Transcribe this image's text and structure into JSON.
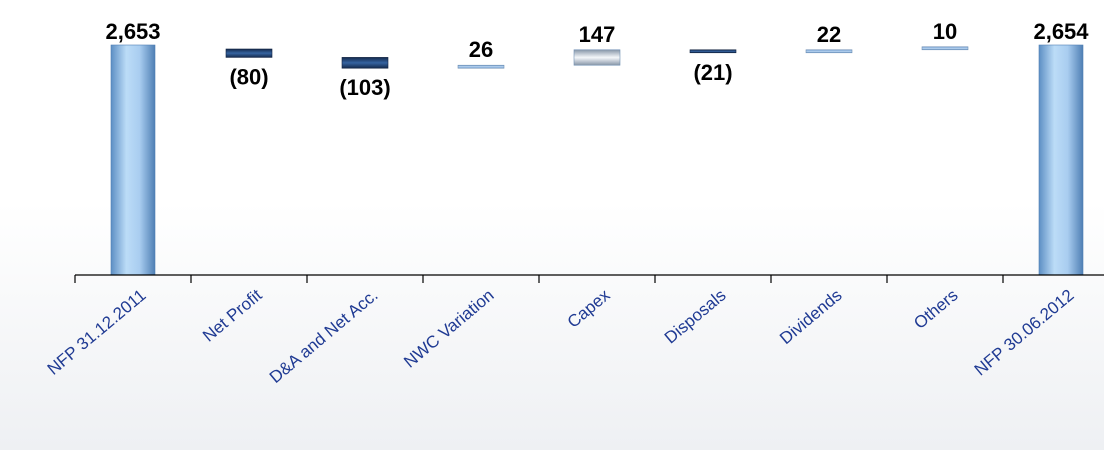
{
  "chart_data": {
    "type": "waterfall",
    "categories": [
      "NFP 31.12.2011",
      "Net Profit",
      "D&A  and Net Acc.",
      "NWC Variation",
      "Capex",
      "Disposals",
      "Dividends",
      "Others",
      "NFP 30.06.2012"
    ],
    "steps": [
      {
        "kind": "total",
        "value": 2653,
        "label": "2,653"
      },
      {
        "kind": "decrease",
        "value": -80,
        "label": "(80)"
      },
      {
        "kind": "decrease",
        "value": -103,
        "label": "(103)"
      },
      {
        "kind": "increase",
        "value": 26,
        "label": "26"
      },
      {
        "kind": "increase",
        "value": 147,
        "label": "147"
      },
      {
        "kind": "decrease",
        "value": -21,
        "label": "(21)"
      },
      {
        "kind": "increase",
        "value": 22,
        "label": "22"
      },
      {
        "kind": "increase",
        "value": 10,
        "label": "10"
      },
      {
        "kind": "total",
        "value": 2654,
        "label": "2,654"
      }
    ],
    "title": "",
    "xlabel": "",
    "ylabel": "",
    "grid": false,
    "legend": "none",
    "colors": {
      "total": "#9cc6ee",
      "decrease": "#1f3b66",
      "increase": "#8fb6df",
      "capex": "#c9d3dc",
      "category_text": "#1f3a93"
    }
  }
}
